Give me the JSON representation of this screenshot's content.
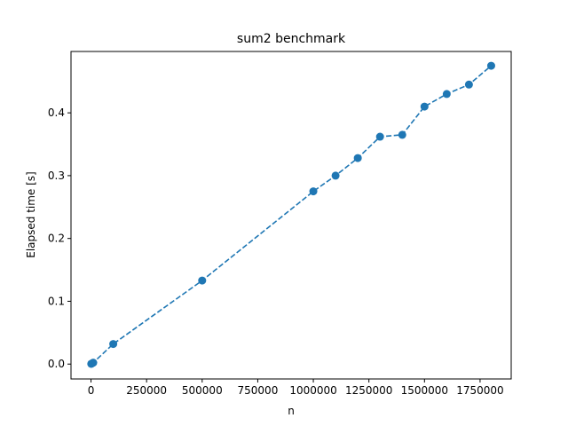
{
  "chart_data": {
    "type": "line",
    "title": "sum2 benchmark",
    "xlabel": "n",
    "ylabel": "Elapsed time [s]",
    "xlim": [
      -90000,
      1890000
    ],
    "ylim": [
      -0.0237,
      0.4977
    ],
    "x_ticks": [
      0,
      250000,
      500000,
      750000,
      1000000,
      1250000,
      1500000,
      1750000
    ],
    "x_tick_labels": [
      "0",
      "250000",
      "500000",
      "750000",
      "1000000",
      "1250000",
      "1500000",
      "1750000"
    ],
    "y_ticks": [
      0.0,
      0.1,
      0.2,
      0.3,
      0.4
    ],
    "y_tick_labels": [
      "0.0",
      "0.1",
      "0.2",
      "0.3",
      "0.4"
    ],
    "grid": false,
    "legend": "none",
    "series": [
      {
        "color": "#1f77b4",
        "line_style": "dashed",
        "marker": "circle",
        "x": [
          1000,
          5000,
          10000,
          100000,
          500000,
          1000000,
          1100000,
          1200000,
          1300000,
          1400000,
          1500000,
          1600000,
          1700000,
          1800000
        ],
        "y": [
          0.0004,
          0.0012,
          0.0022,
          0.032,
          0.133,
          0.275,
          0.3,
          0.328,
          0.362,
          0.365,
          0.41,
          0.43,
          0.445,
          0.475
        ]
      }
    ]
  }
}
